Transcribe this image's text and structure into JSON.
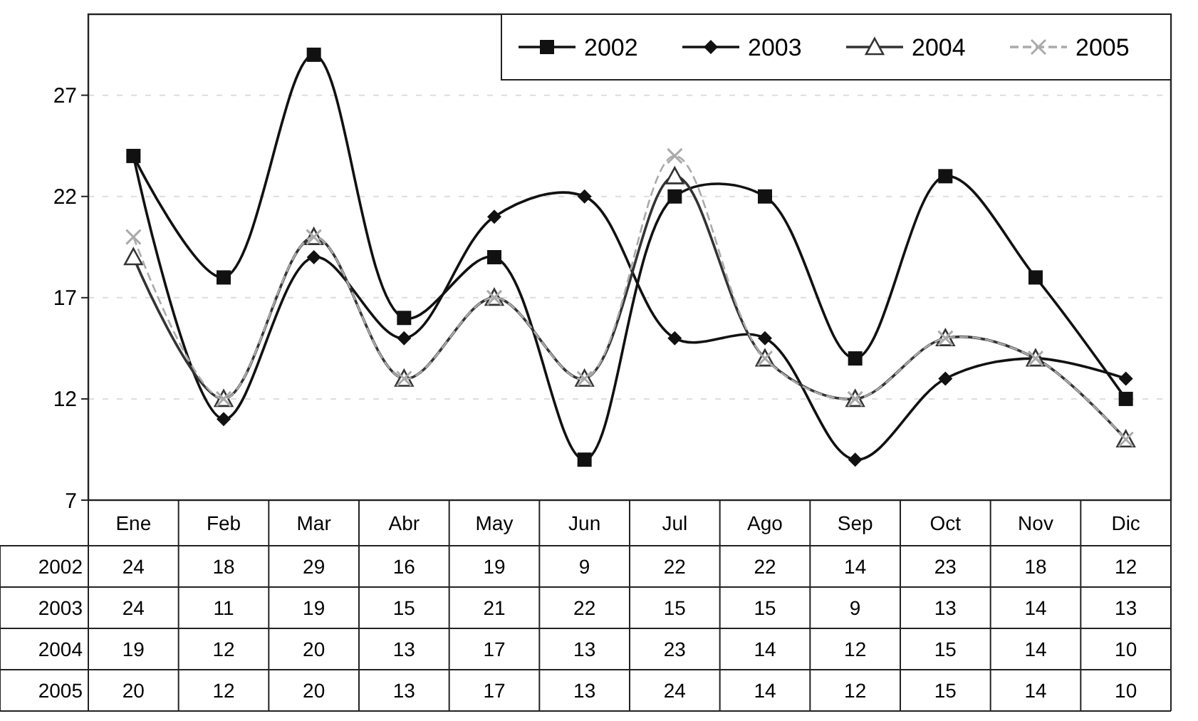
{
  "chart_data": {
    "type": "line",
    "categories": [
      "Ene",
      "Feb",
      "Mar",
      "Abr",
      "May",
      "Jun",
      "Jul",
      "Ago",
      "Sep",
      "Oct",
      "Nov",
      "Dic"
    ],
    "series": [
      {
        "name": "2002",
        "color": "#111111",
        "marker": "square",
        "line_style": "solid",
        "values": [
          24,
          18,
          29,
          16,
          19,
          9,
          22,
          22,
          14,
          23,
          18,
          12
        ]
      },
      {
        "name": "2003",
        "color": "#111111",
        "marker": "diamond",
        "line_style": "solid",
        "values": [
          24,
          11,
          19,
          15,
          21,
          22,
          15,
          15,
          9,
          13,
          14,
          13
        ]
      },
      {
        "name": "2004",
        "color": "#333333",
        "marker": "triangle",
        "line_style": "solid",
        "values": [
          19,
          12,
          20,
          13,
          17,
          13,
          23,
          14,
          12,
          15,
          14,
          10
        ]
      },
      {
        "name": "2005",
        "color": "#aaaaaa",
        "marker": "cross",
        "line_style": "dashed",
        "values": [
          20,
          12,
          20,
          13,
          17,
          13,
          24,
          14,
          12,
          15,
          14,
          10
        ]
      }
    ],
    "ylim": [
      7,
      31
    ],
    "yticks": [
      7,
      12,
      17,
      22,
      27
    ],
    "grid": "y",
    "legend": "top right",
    "data_labels": true
  }
}
